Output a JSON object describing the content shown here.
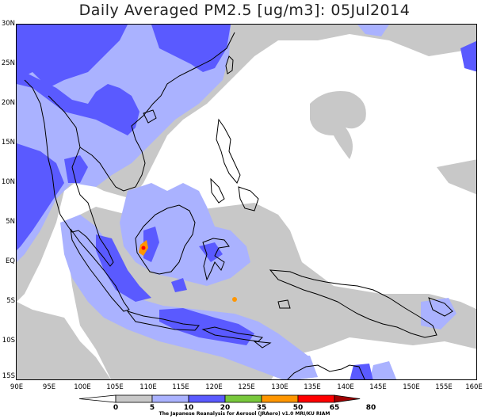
{
  "title": "Daily Averaged PM2.5 [ug/m3]: 05Jul2014",
  "credit": "The Japanese Reanalysis for Aerosol (JRAero) v1.0 MRI/KU RIAM",
  "y_axis": [
    "30N",
    "25N",
    "20N",
    "15N",
    "10N",
    "5N",
    "EQ",
    "5S",
    "10S",
    "15S"
  ],
  "x_axis": [
    "90E",
    "95E",
    "100E",
    "105E",
    "110E",
    "115E",
    "120E",
    "125E",
    "130E",
    "135E",
    "140E",
    "145E",
    "150E",
    "155E",
    "160E"
  ],
  "colorbar": {
    "labels": [
      "0",
      "5",
      "10",
      "20",
      "35",
      "50",
      "65",
      "80"
    ],
    "colors": [
      "#ffffff",
      "#c8c8c8",
      "#aab2ff",
      "#5a5aff",
      "#78c83c",
      "#ff9600",
      "#ff0000",
      "#a00000"
    ]
  },
  "colors": {
    "gray": "#c8c8c8",
    "light_blue": "#aab2ff",
    "blue": "#5a5aff",
    "orange": "#ff9600",
    "red": "#ff0000"
  }
}
